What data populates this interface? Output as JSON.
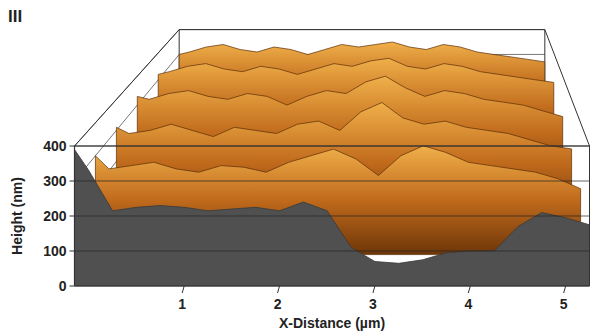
{
  "chart_data": {
    "type": "surface",
    "title": "III",
    "xlabel": "X-Distance (µm)",
    "zlabel": "Height (nm)",
    "xlim": [
      -0.15,
      5.25
    ],
    "xticks": [
      1,
      2,
      3,
      4,
      5
    ],
    "ylim": [
      0,
      5
    ],
    "zlim": [
      0,
      400
    ],
    "zticks": [
      0,
      100,
      200,
      300,
      400
    ],
    "grid": true,
    "x": [
      -0.15,
      0,
      0.25,
      0.5,
      0.75,
      1,
      1.25,
      1.5,
      1.75,
      2,
      2.25,
      2.5,
      2.75,
      3,
      3.25,
      3.5,
      3.75,
      4,
      4.25,
      4.5,
      4.75,
      5,
      5.25
    ],
    "y": [
      0,
      1,
      2,
      3,
      4,
      5
    ],
    "z": [
      [
        390,
        330,
        215,
        225,
        230,
        225,
        215,
        220,
        225,
        215,
        240,
        215,
        110,
        70,
        65,
        75,
        95,
        100,
        100,
        170,
        210,
        195,
        175
      ],
      [
        300,
        260,
        270,
        280,
        260,
        250,
        270,
        265,
        250,
        280,
        300,
        320,
        290,
        240,
        300,
        330,
        310,
        280,
        270,
        260,
        250,
        230,
        200
      ],
      [
        310,
        290,
        300,
        320,
        300,
        280,
        310,
        300,
        290,
        320,
        330,
        300,
        360,
        390,
        340,
        320,
        330,
        310,
        300,
        290,
        270,
        250,
        240
      ],
      [
        330,
        320,
        340,
        350,
        330,
        320,
        340,
        330,
        300,
        330,
        350,
        340,
        380,
        400,
        360,
        330,
        350,
        340,
        320,
        310,
        300,
        280,
        260
      ],
      [
        320,
        330,
        350,
        360,
        340,
        330,
        350,
        340,
        320,
        340,
        360,
        350,
        370,
        380,
        350,
        340,
        360,
        350,
        330,
        320,
        310,
        300,
        290
      ],
      [
        300,
        310,
        330,
        340,
        320,
        310,
        330,
        320,
        300,
        320,
        340,
        330,
        340,
        350,
        330,
        320,
        340,
        330,
        310,
        300,
        290,
        280,
        270
      ]
    ]
  }
}
